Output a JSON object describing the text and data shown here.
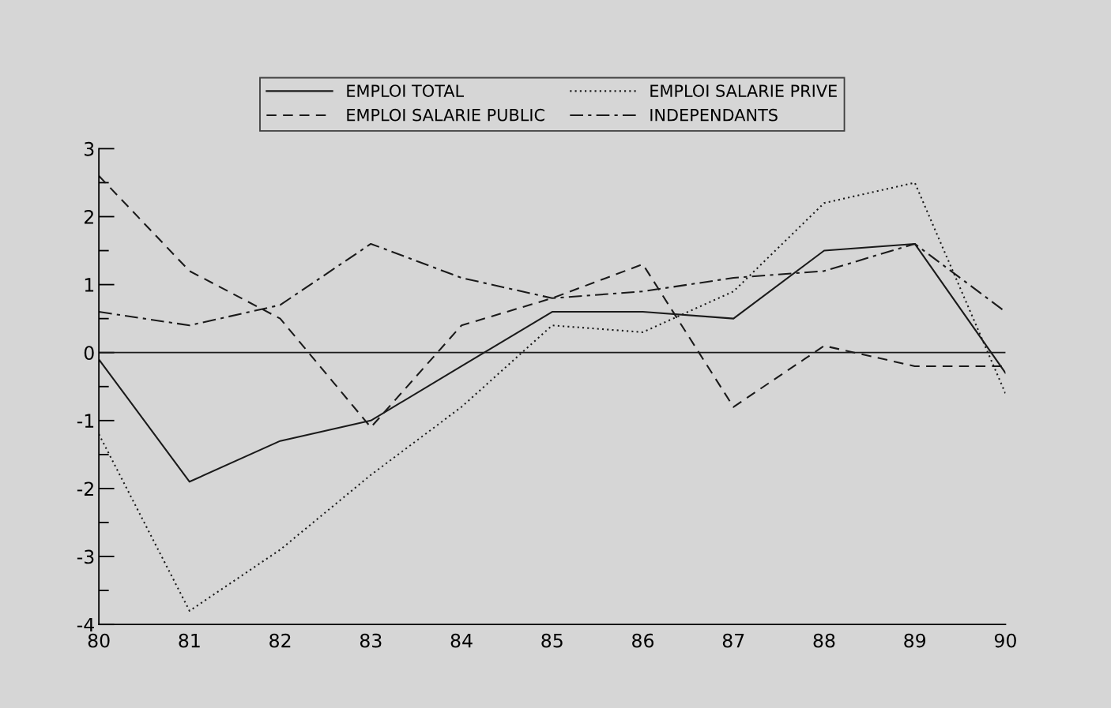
{
  "chart_data": {
    "type": "line",
    "x": [
      80,
      81,
      82,
      83,
      84,
      85,
      86,
      87,
      88,
      89,
      90
    ],
    "series": [
      {
        "name": "EMPLOI TOTAL",
        "color": "#1a1a1a",
        "line_style": "solid",
        "values": [
          -0.1,
          -1.9,
          -1.3,
          -1.0,
          -0.2,
          0.6,
          0.6,
          0.5,
          1.5,
          1.6,
          -0.3
        ]
      },
      {
        "name": "EMPLOI SALARIE PRIVE",
        "color": "#1a1a1a",
        "line_style": "dotted",
        "values": [
          -1.2,
          -3.8,
          -2.9,
          -1.8,
          -0.8,
          0.4,
          0.3,
          0.9,
          2.2,
          2.5,
          -0.6
        ]
      },
      {
        "name": "EMPLOI SALARIE PUBLIC",
        "color": "#1a1a1a",
        "line_style": "dashed",
        "values": [
          2.6,
          1.2,
          0.5,
          -1.1,
          0.4,
          0.8,
          1.3,
          -0.8,
          0.1,
          -0.2,
          -0.2
        ]
      },
      {
        "name": "INDEPENDANTS",
        "color": "#1a1a1a",
        "line_style": "dashdot",
        "values": [
          0.6,
          0.4,
          0.7,
          1.6,
          1.1,
          0.8,
          0.9,
          1.1,
          1.2,
          1.6,
          0.6
        ]
      }
    ],
    "xlim": [
      80,
      90
    ],
    "xticks": [
      80,
      81,
      82,
      83,
      84,
      85,
      86,
      87,
      88,
      89,
      90
    ],
    "ylim": [
      -4,
      3
    ],
    "yticks": [
      -4,
      -3,
      -2,
      -1,
      0,
      1,
      2,
      3
    ],
    "ref_lines": [
      {
        "axis": "y",
        "value": 0,
        "color": "#1a1a1a",
        "line_style": "solid"
      }
    ],
    "grid": false,
    "legend": "top",
    "marker": "none"
  }
}
